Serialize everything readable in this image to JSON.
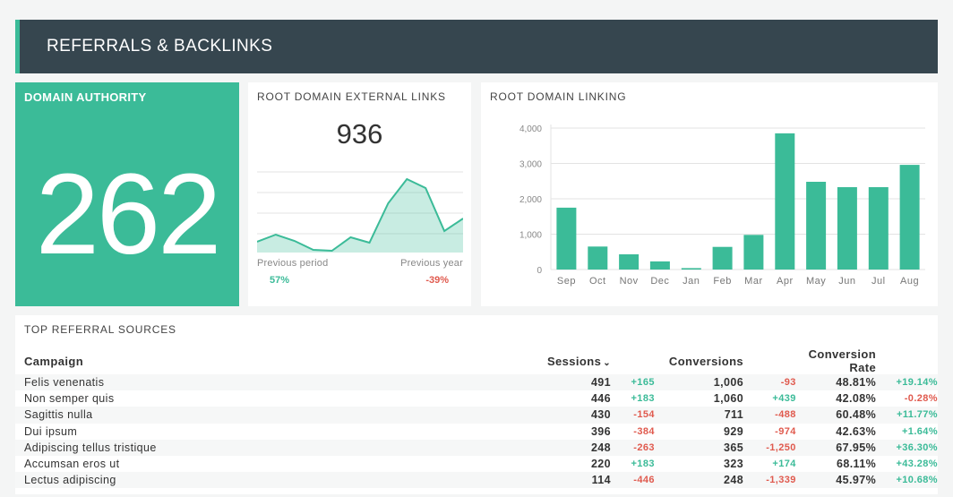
{
  "header": {
    "title": "REFERRALS & BACKLINKS"
  },
  "domain_authority": {
    "label": "DOMAIN AUTHORITY",
    "value": "262"
  },
  "external_links": {
    "label": "ROOT DOMAIN EXTERNAL LINKS",
    "value": "936",
    "previous_period_label": "Previous period",
    "previous_year_label": "Previous year",
    "previous_period_pct": "57%",
    "previous_year_pct": "-39%",
    "accent_color": "#3bbb98",
    "negative_color": "#e05a4e"
  },
  "chart_data": [
    {
      "type": "area",
      "values": [
        12,
        20,
        13,
        3,
        2,
        17,
        11,
        55,
        82,
        72,
        24,
        38
      ],
      "grid": true
    },
    {
      "type": "bar",
      "title": "ROOT DOMAIN LINKING",
      "categories": [
        "Sep",
        "Oct",
        "Nov",
        "Dec",
        "Jan",
        "Feb",
        "Mar",
        "Apr",
        "May",
        "Jun",
        "Jul",
        "Aug"
      ],
      "values": [
        1750,
        650,
        430,
        230,
        40,
        640,
        980,
        3850,
        2480,
        2330,
        2330,
        2960
      ],
      "yticks": [
        "0",
        "1,000",
        "2,000",
        "3,000",
        "4,000"
      ],
      "ylim": [
        0,
        4000
      ],
      "grid": true,
      "color": "#3bbb98"
    }
  ],
  "referrals": {
    "label": "TOP REFERRAL SOURCES",
    "columns": {
      "campaign": "Campaign",
      "sessions": "Sessions",
      "sort_caret": "⌄",
      "conversions": "Conversions",
      "conversion_rate": "Conversion Rate"
    },
    "rows": [
      {
        "campaign": "Felis venenatis",
        "sessions": "491",
        "sessions_delta": "+165",
        "conversions": "1,006",
        "conversions_delta": "-93",
        "rate": "48.81%",
        "rate_delta": "+19.14%"
      },
      {
        "campaign": "Non semper quis",
        "sessions": "446",
        "sessions_delta": "+183",
        "conversions": "1,060",
        "conversions_delta": "+439",
        "rate": "42.08%",
        "rate_delta": "-0.28%"
      },
      {
        "campaign": "Sagittis nulla",
        "sessions": "430",
        "sessions_delta": "-154",
        "conversions": "711",
        "conversions_delta": "-488",
        "rate": "60.48%",
        "rate_delta": "+11.77%"
      },
      {
        "campaign": "Dui ipsum",
        "sessions": "396",
        "sessions_delta": "-384",
        "conversions": "929",
        "conversions_delta": "-974",
        "rate": "42.63%",
        "rate_delta": "+1.64%"
      },
      {
        "campaign": "Adipiscing tellus tristique",
        "sessions": "248",
        "sessions_delta": "-263",
        "conversions": "365",
        "conversions_delta": "-1,250",
        "rate": "67.95%",
        "rate_delta": "+36.30%"
      },
      {
        "campaign": "Accumsan eros ut",
        "sessions": "220",
        "sessions_delta": "+183",
        "conversions": "323",
        "conversions_delta": "+174",
        "rate": "68.11%",
        "rate_delta": "+43.28%"
      },
      {
        "campaign": "Lectus adipiscing",
        "sessions": "114",
        "sessions_delta": "-446",
        "conversions": "248",
        "conversions_delta": "-1,339",
        "rate": "45.97%",
        "rate_delta": "+10.68%"
      }
    ]
  }
}
